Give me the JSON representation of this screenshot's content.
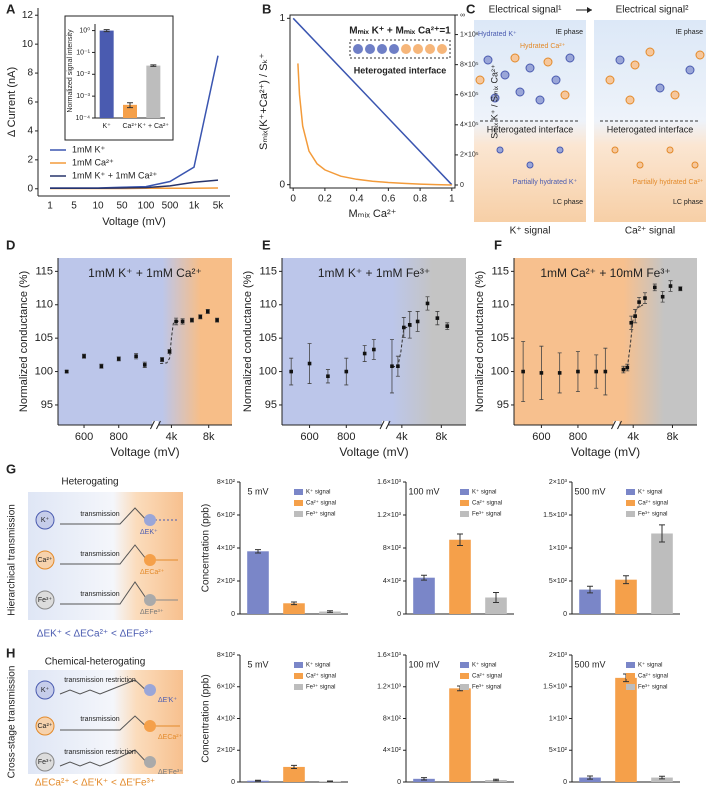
{
  "panel_labels": [
    "A",
    "B",
    "C",
    "D",
    "E",
    "F",
    "G",
    "H"
  ],
  "C": {
    "header_left": "Electrical signal¹",
    "header_right": "Electrical signal²",
    "hydrated_k": "Hydrated K⁺",
    "hydrated_ca": "Hydrated Ca²⁺",
    "ie_left": "IE phase",
    "ie_right": "IE phase",
    "interface_left": "Heterogated interface",
    "interface_right": "Heterogated interface",
    "partial_k": "Partially hydrated K⁺",
    "partial_ca": "Partially hydrated Ca²⁺",
    "lc_left": "LC phase",
    "lc_right": "LC phase",
    "signal_left": "K⁺ signal",
    "signal_right": "Ca²⁺ signal"
  },
  "G_scheme": {
    "title": "Heterogating",
    "side": "Hierarchical transmission",
    "ions": [
      "K⁺",
      "Ca²⁺",
      "Fe³⁺"
    ],
    "steps": [
      "transmission",
      "transmission",
      "transmission"
    ],
    "energies": [
      "ΔEK⁺",
      "ΔECa²⁺",
      "ΔEFe³⁺"
    ],
    "order": "ΔEK⁺ < ΔECa²⁺ < ΔEFe³⁺"
  },
  "H_scheme": {
    "title": "Chemical-heterogating",
    "side": "Cross-stage transmission",
    "ions": [
      "K⁺",
      "Ca²⁺",
      "Fe³⁺"
    ],
    "steps": [
      "transmission restriction",
      "transmission",
      "transmission restriction"
    ],
    "energies": [
      "ΔE'K⁺",
      "ΔECa²⁺",
      "ΔE'Fe³⁺"
    ],
    "order": "ΔECa²⁺ < ΔE'K⁺ < ΔE'Fe³⁺"
  },
  "chart_data": [
    {
      "type": "line",
      "ylabel": "Δ Current (nA)",
      "xlabel": "Voltage (mV)",
      "categories": [
        "1",
        "5",
        "10",
        "50",
        "100",
        "500",
        "1k",
        "5k"
      ],
      "ylim": [
        -0.5,
        12.5
      ],
      "yticks": [
        0,
        2,
        4,
        6,
        8,
        10,
        12
      ],
      "legend": "lower left",
      "series": [
        {
          "name": "1mM K⁺",
          "color": "#3a55b0",
          "values": [
            0.05,
            0.05,
            0.05,
            0.1,
            0.15,
            0.5,
            1.5,
            9.2
          ]
        },
        {
          "name": "1mM Ca²⁺",
          "color": "#f39b3a",
          "values": [
            0.02,
            0.02,
            0.02,
            0.02,
            0.03,
            0.03,
            0.04,
            0.05
          ]
        },
        {
          "name": "1mM K⁺ + 1mM Ca²⁺",
          "color": "#27346b",
          "values": [
            0.03,
            0.03,
            0.04,
            0.05,
            0.08,
            0.2,
            0.45,
            0.6
          ]
        }
      ]
    },
    {
      "type": "bar",
      "ylabel": "Normalized signal intensity",
      "log": true,
      "categories": [
        "K⁺",
        "Ca²⁺",
        "K⁺ + Ca²⁺"
      ],
      "values": [
        1,
        0.0004,
        0.025
      ],
      "errors": [
        0.1,
        0.0001,
        0.002
      ],
      "colors": [
        "#4a5bb0",
        "#f5a04a",
        "#bdbdbd"
      ],
      "ylim": [
        0.0001,
        2
      ],
      "yticks": [
        {
          "value": 1,
          "label": "10⁰"
        },
        {
          "value": 0.1,
          "label": "10⁻¹"
        },
        {
          "value": 0.01,
          "label": "10⁻²"
        },
        {
          "value": 0.001,
          "label": "10⁻³"
        },
        {
          "value": 0.0001,
          "label": "10⁻⁴"
        }
      ]
    },
    {
      "type": "line",
      "xlabel": "Mₘᵢₓ Ca²⁺",
      "ylabel": "Sₘᵢₓ(K⁺+Ca²⁺) / Sₖ⁺",
      "y2label": "Sₘᵢₓ K⁺ / Sₘᵢₓ Ca²⁺",
      "inset_formula": "Mₘᵢₓ K⁺ + Mₘᵢₓ Ca²⁺=1",
      "inset_label": "Heterogated interface",
      "xlim": [
        -0.02,
        1.02
      ],
      "xticks": [
        0,
        0.2,
        0.4,
        0.6,
        0.8,
        1
      ],
      "ylim": [
        -0.02,
        1.02
      ],
      "yticks": [
        0,
        1
      ],
      "y2lim": [
        -20000,
        1130000
      ],
      "y2ticks": [
        0,
        {
          "value": 200000,
          "label": "2×10⁵"
        },
        {
          "value": 400000,
          "label": "4×10⁵"
        },
        {
          "value": 600000,
          "label": "6×10⁵"
        },
        {
          "value": 800000,
          "label": "8×10⁵"
        },
        {
          "value": 1000000,
          "label": "1×10⁶"
        },
        {
          "value": 1130000,
          "label": "∞"
        }
      ],
      "series": [
        {
          "color": "#3a55b0",
          "x": [
            0,
            1
          ],
          "values": [
            1,
            0
          ]
        },
        {
          "color": "#f39b3a",
          "axis": "y2",
          "x": [
            0.03,
            0.04,
            0.06,
            0.1,
            0.15,
            0.2,
            0.3,
            0.4,
            0.5,
            0.6,
            0.7,
            0.8,
            0.9,
            1
          ],
          "values": [
            808333,
            600000,
            391667,
            225000,
            141667,
            100000,
            58333,
            37500,
            25000,
            16667,
            10714,
            6250,
            2778,
            0
          ]
        }
      ]
    },
    {
      "type": "scatter",
      "title": "1mM K⁺ + 1mM Ca²⁺",
      "ylabel": "Normalized  conductance (%)",
      "xlabel": "Voltage (mV)",
      "background": [
        "#bcc6ea",
        "#f7be88"
      ],
      "xlim": [
        450,
        10500
      ],
      "xbreak": [
        1000,
        2500
      ],
      "xticks": [
        600,
        800,
        {
          "value": 4000,
          "label": "4k"
        },
        {
          "value": 8000,
          "label": "8k"
        }
      ],
      "ylim": [
        92,
        117
      ],
      "yticks": [
        95,
        100,
        105,
        110,
        115
      ],
      "x": [
        500,
        600,
        700,
        800,
        900,
        950,
        3000,
        3800,
        4500,
        5200,
        6200,
        7100,
        7900,
        8900
      ],
      "values": [
        100,
        102.3,
        100.8,
        101.9,
        102.3,
        101,
        101.8,
        103,
        107.5,
        107.5,
        107.7,
        108.2,
        109,
        107.7
      ],
      "errors": [
        0.2,
        0.3,
        0.3,
        0.3,
        0.4,
        0.4,
        0.3,
        0.3,
        0.5,
        0.4,
        0.3,
        0.3,
        0.3,
        0.3
      ],
      "fit": {
        "x": [
          2800,
          3500,
          3800,
          4000,
          4200,
          4500,
          5000
        ],
        "values": [
          101.2,
          101.3,
          102,
          105,
          107.2,
          107.5,
          107.6
        ]
      }
    },
    {
      "type": "scatter",
      "title": "1mM K⁺ + 1mM Fe³⁺",
      "ylabel": "Normalized  conductance (%)",
      "xlabel": "Voltage (mV)",
      "background": [
        "#bcc6ea",
        "#c4c4c4"
      ],
      "xlim": [
        450,
        10500
      ],
      "xbreak": [
        1000,
        2500
      ],
      "xticks": [
        600,
        800,
        {
          "value": 4000,
          "label": "4k"
        },
        {
          "value": 8000,
          "label": "8k"
        }
      ],
      "ylim": [
        92,
        117
      ],
      "yticks": [
        95,
        100,
        105,
        110,
        115
      ],
      "x": [
        500,
        600,
        700,
        800,
        900,
        950,
        3000,
        3600,
        4200,
        4800,
        5600,
        6600,
        7600,
        8600
      ],
      "values": [
        100,
        101.2,
        99.3,
        100,
        102.7,
        103.3,
        100.8,
        100.8,
        106.6,
        107,
        107.5,
        110.2,
        108,
        106.8
      ],
      "errors": [
        2,
        3,
        1,
        2,
        1.2,
        1.5,
        4,
        1.5,
        1.5,
        2,
        1.5,
        1,
        1,
        0.5
      ],
      "fit": {
        "x": [
          3000,
          3600,
          3900,
          4200,
          5000
        ],
        "values": [
          100.7,
          100.8,
          103,
          106.5,
          106.8
        ]
      }
    },
    {
      "type": "scatter",
      "title": "1mM Ca²⁺ + 10mM Fe³⁺",
      "ylabel": "Normalized  conductance (%)",
      "xlabel": "Voltage (mV)",
      "background": [
        "#f7c08e",
        "#c4c4c4"
      ],
      "xlim": [
        450,
        10500
      ],
      "xbreak": [
        1000,
        2500
      ],
      "xticks": [
        600,
        800,
        {
          "value": 4000,
          "label": "4k"
        },
        {
          "value": 8000,
          "label": "8k"
        }
      ],
      "ylim": [
        92,
        117
      ],
      "yticks": [
        95,
        100,
        105,
        110,
        115
      ],
      "x": [
        500,
        600,
        700,
        800,
        900,
        950,
        3000,
        3400,
        3800,
        4200,
        4600,
        5200,
        6200,
        7000,
        7800,
        8800
      ],
      "values": [
        100,
        99.8,
        99.8,
        100,
        100,
        100,
        100.3,
        100.6,
        107.3,
        108.3,
        110.4,
        111,
        112.6,
        111.2,
        112.8,
        112.4
      ],
      "errors": [
        4.5,
        4,
        3,
        3,
        2.5,
        3.5,
        0.5,
        0.5,
        1,
        1,
        0.7,
        0.8,
        0.5,
        0.8,
        0.8,
        0.3
      ],
      "fit": {
        "x": [
          3000,
          3400,
          3700,
          4000,
          4400,
          5000
        ],
        "values": [
          100.3,
          100.5,
          104,
          108,
          109.5,
          110
        ]
      }
    },
    {
      "type": "bar",
      "title": "5 mV",
      "ylabel": "Concentration (ppb)",
      "ylim": [
        0,
        800
      ],
      "yticks": [
        0,
        {
          "value": 200,
          "label": "2×10²"
        },
        {
          "value": 400,
          "label": "4×10²"
        },
        {
          "value": 600,
          "label": "6×10²"
        },
        {
          "value": 800,
          "label": "8×10²"
        }
      ],
      "series": [
        {
          "name": "K⁺ signal",
          "color": "#7a86c8",
          "values": [
            380
          ],
          "errors": [
            10
          ]
        },
        {
          "name": "Ca²⁺ signal",
          "color": "#f5a04a",
          "values": [
            65
          ],
          "errors": [
            8
          ]
        },
        {
          "name": "Fe³⁺ signal",
          "color": "#bdbdbd",
          "values": [
            15
          ],
          "errors": [
            5
          ]
        }
      ]
    },
    {
      "type": "bar",
      "title": "100 mV",
      "ylim": [
        0,
        1600
      ],
      "yticks": [
        0,
        {
          "value": 400,
          "label": "4×10²"
        },
        {
          "value": 800,
          "label": "8×10²"
        },
        {
          "value": 1200,
          "label": "1.2×10³"
        },
        {
          "value": 1600,
          "label": "1.6×10³"
        }
      ],
      "series": [
        {
          "name": "K⁺ signal",
          "color": "#7a86c8",
          "values": [
            440
          ],
          "errors": [
            30
          ]
        },
        {
          "name": "Ca²⁺ signal",
          "color": "#f5a04a",
          "values": [
            900
          ],
          "errors": [
            70
          ]
        },
        {
          "name": "Fe³⁺ signal",
          "color": "#bdbdbd",
          "values": [
            200
          ],
          "errors": [
            60
          ]
        }
      ]
    },
    {
      "type": "bar",
      "title": "500 mV",
      "ylim": [
        0,
        2000
      ],
      "yticks": [
        0,
        {
          "value": 500,
          "label": "5×10²"
        },
        {
          "value": 1000,
          "label": "1×10³"
        },
        {
          "value": 1500,
          "label": "1.5×10³"
        },
        {
          "value": 2000,
          "label": "2×10³"
        }
      ],
      "series": [
        {
          "name": "K⁺ signal",
          "color": "#7a86c8",
          "values": [
            370
          ],
          "errors": [
            50
          ]
        },
        {
          "name": "Ca²⁺ signal",
          "color": "#f5a04a",
          "values": [
            520
          ],
          "errors": [
            60
          ]
        },
        {
          "name": "Fe³⁺ signal",
          "color": "#bdbdbd",
          "values": [
            1220
          ],
          "errors": [
            130
          ]
        }
      ]
    },
    {
      "type": "bar",
      "title": "5 mV",
      "ylabel": "Concentration (ppb)",
      "ylim": [
        0,
        800
      ],
      "yticks": [
        0,
        {
          "value": 200,
          "label": "2×10²"
        },
        {
          "value": 400,
          "label": "4×10²"
        },
        {
          "value": 600,
          "label": "6×10²"
        },
        {
          "value": 800,
          "label": "8×10²"
        }
      ],
      "series": [
        {
          "name": "K⁺ signal",
          "color": "#7a86c8",
          "values": [
            8
          ],
          "errors": [
            3
          ]
        },
        {
          "name": "Ca²⁺ signal",
          "color": "#f5a04a",
          "values": [
            95
          ],
          "errors": [
            10
          ]
        },
        {
          "name": "Fe³⁺ signal",
          "color": "#bdbdbd",
          "values": [
            4
          ],
          "errors": [
            2
          ]
        }
      ]
    },
    {
      "type": "bar",
      "title": "100 mV",
      "ylim": [
        0,
        1600
      ],
      "yticks": [
        0,
        {
          "value": 400,
          "label": "4×10²"
        },
        {
          "value": 800,
          "label": "8×10²"
        },
        {
          "value": 1200,
          "label": "1.2×10³"
        },
        {
          "value": 1600,
          "label": "1.6×10³"
        }
      ],
      "series": [
        {
          "name": "K⁺ signal",
          "color": "#7a86c8",
          "values": [
            40
          ],
          "errors": [
            15
          ]
        },
        {
          "name": "Ca²⁺ signal",
          "color": "#f5a04a",
          "values": [
            1180
          ],
          "errors": [
            30
          ]
        },
        {
          "name": "Fe³⁺ signal",
          "color": "#bdbdbd",
          "values": [
            25
          ],
          "errors": [
            10
          ]
        }
      ]
    },
    {
      "type": "bar",
      "title": "500 mV",
      "ylim": [
        0,
        2000
      ],
      "yticks": [
        0,
        {
          "value": 500,
          "label": "5×10²"
        },
        {
          "value": 1000,
          "label": "1×10³"
        },
        {
          "value": 1500,
          "label": "1.5×10³"
        },
        {
          "value": 2000,
          "label": "2×10³"
        }
      ],
      "series": [
        {
          "name": "K⁺ signal",
          "color": "#7a86c8",
          "values": [
            70
          ],
          "errors": [
            25
          ]
        },
        {
          "name": "Ca²⁺ signal",
          "color": "#f5a04a",
          "values": [
            1640
          ],
          "errors": [
            60
          ]
        },
        {
          "name": "Fe³⁺ signal",
          "color": "#bdbdbd",
          "values": [
            70
          ],
          "errors": [
            20
          ]
        }
      ]
    }
  ]
}
